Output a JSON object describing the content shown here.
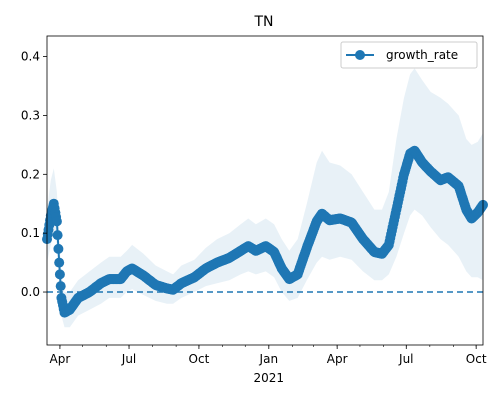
{
  "chart_data": {
    "type": "line",
    "title": "TN",
    "xlabel": "",
    "ylabel": "",
    "legend": {
      "entries": [
        "growth_rate"
      ],
      "placement": "top-right"
    },
    "grid": false,
    "x_range": [
      "2020-03-15",
      "2021-10-10"
    ],
    "ylim": [
      -0.09,
      0.435
    ],
    "y_ticks": [
      {
        "value": 0.0,
        "label": "0.0"
      },
      {
        "value": 0.1,
        "label": "0.1"
      },
      {
        "value": 0.2,
        "label": "0.2"
      },
      {
        "value": 0.3,
        "label": "0.3"
      },
      {
        "value": 0.4,
        "label": "0.4"
      }
    ],
    "x_ticks": [
      {
        "date": "2020-04-01",
        "label": "Apr"
      },
      {
        "date": "2020-07-01",
        "label": "Jul"
      },
      {
        "date": "2020-10-01",
        "label": "Oct"
      },
      {
        "date": "2021-01-01",
        "label": "Jan"
      },
      {
        "date": "2021-04-01",
        "label": "Apr"
      },
      {
        "date": "2021-07-01",
        "label": "Jul"
      },
      {
        "date": "2021-10-01",
        "label": "Oct"
      }
    ],
    "x_year_label": "2021",
    "reference_line": {
      "y": 0.0,
      "style": "dashed"
    },
    "series": [
      {
        "name": "growth_rate",
        "color": "#1f77b4",
        "band_color": "#1f77b4",
        "points": [
          {
            "x": "2020-03-15",
            "y": 0.09,
            "lo": 0.05,
            "hi": 0.14
          },
          {
            "x": "2020-03-20",
            "y": 0.13,
            "lo": 0.08,
            "hi": 0.19
          },
          {
            "x": "2020-03-24",
            "y": 0.15,
            "lo": 0.1,
            "hi": 0.21
          },
          {
            "x": "2020-03-28",
            "y": 0.12,
            "lo": 0.08,
            "hi": 0.17
          },
          {
            "x": "2020-03-31",
            "y": 0.05,
            "lo": 0.02,
            "hi": 0.09
          },
          {
            "x": "2020-04-03",
            "y": -0.01,
            "lo": -0.04,
            "hi": 0.03
          },
          {
            "x": "2020-04-07",
            "y": -0.035,
            "lo": -0.06,
            "hi": 0.0
          },
          {
            "x": "2020-04-14",
            "y": -0.03,
            "lo": -0.06,
            "hi": 0.0
          },
          {
            "x": "2020-04-25",
            "y": -0.01,
            "lo": -0.04,
            "hi": 0.02
          },
          {
            "x": "2020-05-10",
            "y": 0.0,
            "lo": -0.03,
            "hi": 0.035
          },
          {
            "x": "2020-05-25",
            "y": 0.015,
            "lo": -0.02,
            "hi": 0.05
          },
          {
            "x": "2020-06-05",
            "y": 0.022,
            "lo": -0.01,
            "hi": 0.06
          },
          {
            "x": "2020-06-20",
            "y": 0.022,
            "lo": -0.01,
            "hi": 0.06
          },
          {
            "x": "2020-06-28",
            "y": 0.035,
            "lo": 0.0,
            "hi": 0.07
          },
          {
            "x": "2020-07-05",
            "y": 0.04,
            "lo": 0.005,
            "hi": 0.08
          },
          {
            "x": "2020-07-20",
            "y": 0.028,
            "lo": -0.005,
            "hi": 0.065
          },
          {
            "x": "2020-08-05",
            "y": 0.012,
            "lo": -0.015,
            "hi": 0.045
          },
          {
            "x": "2020-08-20",
            "y": 0.006,
            "lo": -0.02,
            "hi": 0.035
          },
          {
            "x": "2020-08-28",
            "y": 0.004,
            "lo": -0.02,
            "hi": 0.03
          },
          {
            "x": "2020-09-08",
            "y": 0.015,
            "lo": -0.01,
            "hi": 0.045
          },
          {
            "x": "2020-09-25",
            "y": 0.025,
            "lo": 0.0,
            "hi": 0.055
          },
          {
            "x": "2020-10-10",
            "y": 0.04,
            "lo": 0.01,
            "hi": 0.075
          },
          {
            "x": "2020-10-25",
            "y": 0.05,
            "lo": 0.015,
            "hi": 0.09
          },
          {
            "x": "2020-11-10",
            "y": 0.058,
            "lo": 0.02,
            "hi": 0.1
          },
          {
            "x": "2020-11-25",
            "y": 0.07,
            "lo": 0.03,
            "hi": 0.115
          },
          {
            "x": "2020-12-05",
            "y": 0.078,
            "lo": 0.035,
            "hi": 0.125
          },
          {
            "x": "2020-12-15",
            "y": 0.07,
            "lo": 0.03,
            "hi": 0.115
          },
          {
            "x": "2020-12-28",
            "y": 0.078,
            "lo": 0.035,
            "hi": 0.125
          },
          {
            "x": "2021-01-08",
            "y": 0.068,
            "lo": 0.025,
            "hi": 0.115
          },
          {
            "x": "2021-01-18",
            "y": 0.04,
            "lo": 0.0,
            "hi": 0.09
          },
          {
            "x": "2021-01-28",
            "y": 0.022,
            "lo": -0.015,
            "hi": 0.07
          },
          {
            "x": "2021-02-08",
            "y": 0.03,
            "lo": -0.01,
            "hi": 0.09
          },
          {
            "x": "2021-02-20",
            "y": 0.075,
            "lo": 0.02,
            "hi": 0.15
          },
          {
            "x": "2021-03-05",
            "y": 0.12,
            "lo": 0.05,
            "hi": 0.22
          },
          {
            "x": "2021-03-12",
            "y": 0.133,
            "lo": 0.06,
            "hi": 0.24
          },
          {
            "x": "2021-03-22",
            "y": 0.122,
            "lo": 0.055,
            "hi": 0.22
          },
          {
            "x": "2021-04-05",
            "y": 0.125,
            "lo": 0.06,
            "hi": 0.215
          },
          {
            "x": "2021-04-20",
            "y": 0.118,
            "lo": 0.055,
            "hi": 0.2
          },
          {
            "x": "2021-05-05",
            "y": 0.09,
            "lo": 0.035,
            "hi": 0.17
          },
          {
            "x": "2021-05-20",
            "y": 0.068,
            "lo": 0.02,
            "hi": 0.14
          },
          {
            "x": "2021-05-30",
            "y": 0.065,
            "lo": 0.02,
            "hi": 0.14
          },
          {
            "x": "2021-06-08",
            "y": 0.08,
            "lo": 0.03,
            "hi": 0.17
          },
          {
            "x": "2021-06-18",
            "y": 0.14,
            "lo": 0.06,
            "hi": 0.26
          },
          {
            "x": "2021-06-28",
            "y": 0.2,
            "lo": 0.1,
            "hi": 0.33
          },
          {
            "x": "2021-07-06",
            "y": 0.235,
            "lo": 0.13,
            "hi": 0.37
          },
          {
            "x": "2021-07-12",
            "y": 0.24,
            "lo": 0.14,
            "hi": 0.38
          },
          {
            "x": "2021-07-22",
            "y": 0.22,
            "lo": 0.13,
            "hi": 0.36
          },
          {
            "x": "2021-08-02",
            "y": 0.205,
            "lo": 0.11,
            "hi": 0.34
          },
          {
            "x": "2021-08-15",
            "y": 0.19,
            "lo": 0.09,
            "hi": 0.33
          },
          {
            "x": "2021-08-25",
            "y": 0.195,
            "lo": 0.08,
            "hi": 0.32
          },
          {
            "x": "2021-09-08",
            "y": 0.18,
            "lo": 0.06,
            "hi": 0.3
          },
          {
            "x": "2021-09-18",
            "y": 0.14,
            "lo": 0.035,
            "hi": 0.26
          },
          {
            "x": "2021-09-25",
            "y": 0.125,
            "lo": 0.025,
            "hi": 0.25
          },
          {
            "x": "2021-10-03",
            "y": 0.135,
            "lo": 0.025,
            "hi": 0.255
          },
          {
            "x": "2021-10-10",
            "y": 0.148,
            "lo": 0.02,
            "hi": 0.27
          }
        ]
      }
    ]
  }
}
